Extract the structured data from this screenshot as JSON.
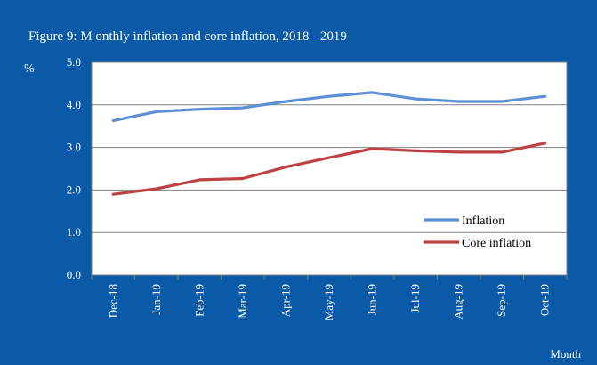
{
  "chart_data": {
    "type": "line",
    "title": "Figure 9: M onthly inflation and core inflation, 2018 - 2019",
    "ylabel": "%",
    "xlabel": "Month",
    "ylim": [
      0.0,
      5.0
    ],
    "yticks": [
      "0.0",
      "1.0",
      "2.0",
      "3.0",
      "4.0",
      "5.0"
    ],
    "grid": true,
    "legend_position": "lower-right",
    "categories": [
      "Dec-18",
      "Jan-19",
      "Feb-19",
      "Mar-19",
      "Apr-19",
      "May-19",
      "Jun-19",
      "Jul-19",
      "Aug-19",
      "Sep-19",
      "Oct-19"
    ],
    "series": [
      {
        "name": "Inflation",
        "color": "#5b8fd6",
        "values": [
          3.63,
          3.84,
          3.9,
          3.93,
          4.08,
          4.2,
          4.29,
          4.14,
          4.08,
          4.08,
          4.2
        ]
      },
      {
        "name": "Core inflation",
        "color": "#bf4040",
        "values": [
          1.9,
          2.03,
          2.24,
          2.27,
          2.54,
          2.76,
          2.97,
          2.92,
          2.89,
          2.89,
          3.1
        ]
      }
    ]
  }
}
